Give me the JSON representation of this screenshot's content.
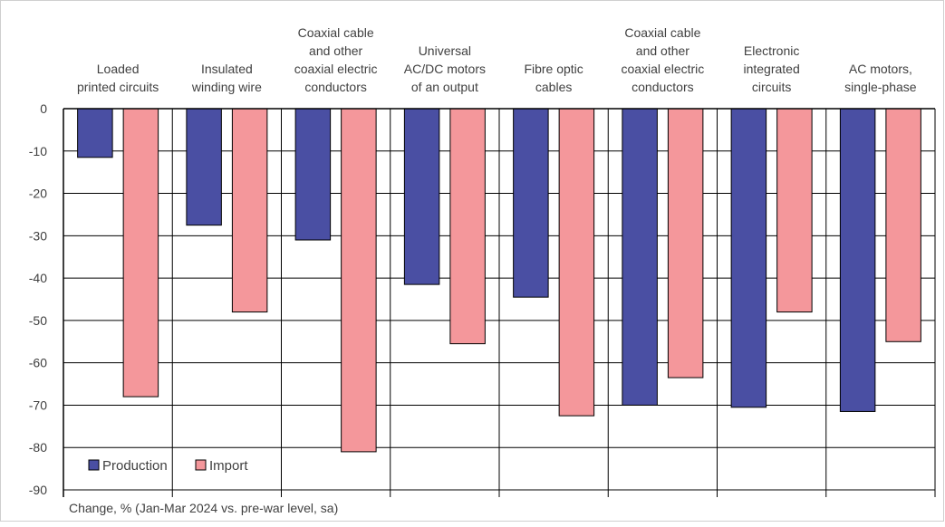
{
  "chart_data": {
    "type": "bar",
    "categories": [
      "Loaded printed circuits",
      "Insulated winding wire",
      "Coaxial cable and other coaxial electric conductors",
      "Universal AC/DC motors of an output",
      "Fibre optic cables",
      "Coaxial cable and other coaxial electric conductors",
      "Electronic integrated circuits",
      "AC motors, single-phase"
    ],
    "category_lines": [
      [
        "Loaded",
        "printed circuits"
      ],
      [
        "Insulated",
        "winding wire"
      ],
      [
        "Coaxial cable",
        "and other",
        "coaxial electric",
        "conductors"
      ],
      [
        "Universal",
        "AC/DC motors",
        "of an output"
      ],
      [
        "Fibre optic",
        "cables"
      ],
      [
        "Coaxial cable",
        "and other",
        "coaxial electric",
        "conductors"
      ],
      [
        "Electronic",
        "integrated",
        "circuits"
      ],
      [
        "AC motors,",
        "single-phase"
      ]
    ],
    "series": [
      {
        "name": "Production",
        "color": "#4a4fa3",
        "values": [
          -11.5,
          -27.5,
          -31,
          -41.5,
          -44.5,
          -70,
          -70.5,
          -71.5
        ]
      },
      {
        "name": "Import",
        "color": "#f4979b",
        "values": [
          -68,
          -48,
          -81,
          -55.5,
          -72.5,
          -63.5,
          -48,
          -55
        ]
      }
    ],
    "ylim": [
      -90,
      0
    ],
    "yticks": [
      0,
      -10,
      -20,
      -30,
      -40,
      -50,
      -60,
      -70,
      -80,
      -90
    ],
    "grid": true,
    "legend": "bottom-left",
    "note": "Change, % (Jan-Mar 2024 vs. pre-war level, sa)"
  }
}
